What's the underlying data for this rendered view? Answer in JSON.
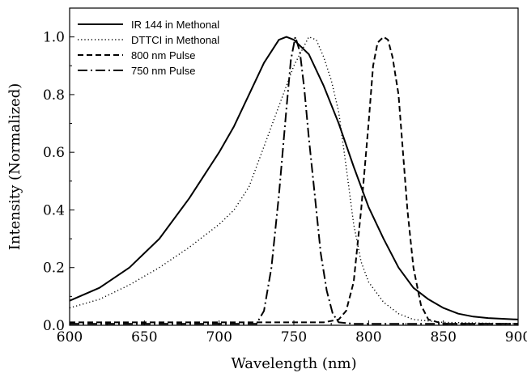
{
  "chart_data": {
    "type": "line",
    "title": "",
    "xlabel": "Wavelength (nm)",
    "ylabel": "Intensity (Normalized)",
    "xlim": [
      600,
      900
    ],
    "ylim": [
      0.0,
      1.1
    ],
    "x_ticks": [
      600,
      650,
      700,
      750,
      800,
      850,
      900
    ],
    "y_ticks": [
      0.0,
      0.2,
      0.4,
      0.6,
      0.8,
      1.0
    ],
    "x_tick_labels": [
      "600",
      "650",
      "700",
      "750",
      "800",
      "850",
      "900"
    ],
    "y_tick_labels": [
      "0.0",
      "0.2",
      "0.4",
      "0.6",
      "0.8",
      "1.0"
    ],
    "grid": false,
    "legend_position": "top-left",
    "series": [
      {
        "name": "IR 144 in Methonal",
        "style": "solid",
        "color": "#000000",
        "points": [
          [
            600,
            0.085
          ],
          [
            620,
            0.13
          ],
          [
            640,
            0.2
          ],
          [
            660,
            0.3
          ],
          [
            680,
            0.44
          ],
          [
            700,
            0.6
          ],
          [
            710,
            0.69
          ],
          [
            720,
            0.8
          ],
          [
            730,
            0.91
          ],
          [
            740,
            0.99
          ],
          [
            745,
            1.0
          ],
          [
            750,
            0.99
          ],
          [
            760,
            0.94
          ],
          [
            770,
            0.83
          ],
          [
            780,
            0.7
          ],
          [
            790,
            0.55
          ],
          [
            800,
            0.41
          ],
          [
            810,
            0.3
          ],
          [
            820,
            0.2
          ],
          [
            830,
            0.13
          ],
          [
            840,
            0.09
          ],
          [
            850,
            0.06
          ],
          [
            860,
            0.04
          ],
          [
            870,
            0.03
          ],
          [
            880,
            0.025
          ],
          [
            900,
            0.02
          ]
        ]
      },
      {
        "name": "DTTCI in Methonal",
        "style": "dotted",
        "color": "#000000",
        "points": [
          [
            600,
            0.06
          ],
          [
            620,
            0.09
          ],
          [
            640,
            0.14
          ],
          [
            660,
            0.2
          ],
          [
            680,
            0.27
          ],
          [
            690,
            0.31
          ],
          [
            700,
            0.35
          ],
          [
            710,
            0.4
          ],
          [
            720,
            0.48
          ],
          [
            730,
            0.62
          ],
          [
            740,
            0.76
          ],
          [
            750,
            0.9
          ],
          [
            760,
            1.0
          ],
          [
            765,
            0.99
          ],
          [
            770,
            0.93
          ],
          [
            775,
            0.85
          ],
          [
            780,
            0.74
          ],
          [
            785,
            0.55
          ],
          [
            790,
            0.35
          ],
          [
            795,
            0.22
          ],
          [
            800,
            0.15
          ],
          [
            810,
            0.08
          ],
          [
            820,
            0.04
          ],
          [
            830,
            0.02
          ],
          [
            850,
            0.01
          ],
          [
            900,
            0.005
          ]
        ]
      },
      {
        "name": "800 nm Pulse",
        "style": "dashed",
        "color": "#000000",
        "points": [
          [
            600,
            0.01
          ],
          [
            760,
            0.01
          ],
          [
            770,
            0.01
          ],
          [
            780,
            0.02
          ],
          [
            785,
            0.05
          ],
          [
            790,
            0.15
          ],
          [
            795,
            0.4
          ],
          [
            800,
            0.7
          ],
          [
            803,
            0.9
          ],
          [
            806,
            0.98
          ],
          [
            810,
            1.0
          ],
          [
            813,
            0.99
          ],
          [
            816,
            0.93
          ],
          [
            820,
            0.8
          ],
          [
            823,
            0.6
          ],
          [
            826,
            0.4
          ],
          [
            830,
            0.2
          ],
          [
            835,
            0.07
          ],
          [
            840,
            0.02
          ],
          [
            850,
            0.005
          ],
          [
            900,
            0.005
          ]
        ]
      },
      {
        "name": "750 nm Pulse",
        "style": "dashdot",
        "color": "#000000",
        "points": [
          [
            600,
            0.005
          ],
          [
            725,
            0.005
          ],
          [
            730,
            0.05
          ],
          [
            735,
            0.2
          ],
          [
            740,
            0.45
          ],
          [
            745,
            0.75
          ],
          [
            748,
            0.92
          ],
          [
            751,
            1.0
          ],
          [
            754,
            0.95
          ],
          [
            757,
            0.82
          ],
          [
            760,
            0.65
          ],
          [
            764,
            0.45
          ],
          [
            768,
            0.25
          ],
          [
            772,
            0.12
          ],
          [
            776,
            0.04
          ],
          [
            780,
            0.01
          ],
          [
            790,
            0.005
          ],
          [
            900,
            0.005
          ]
        ]
      }
    ]
  }
}
